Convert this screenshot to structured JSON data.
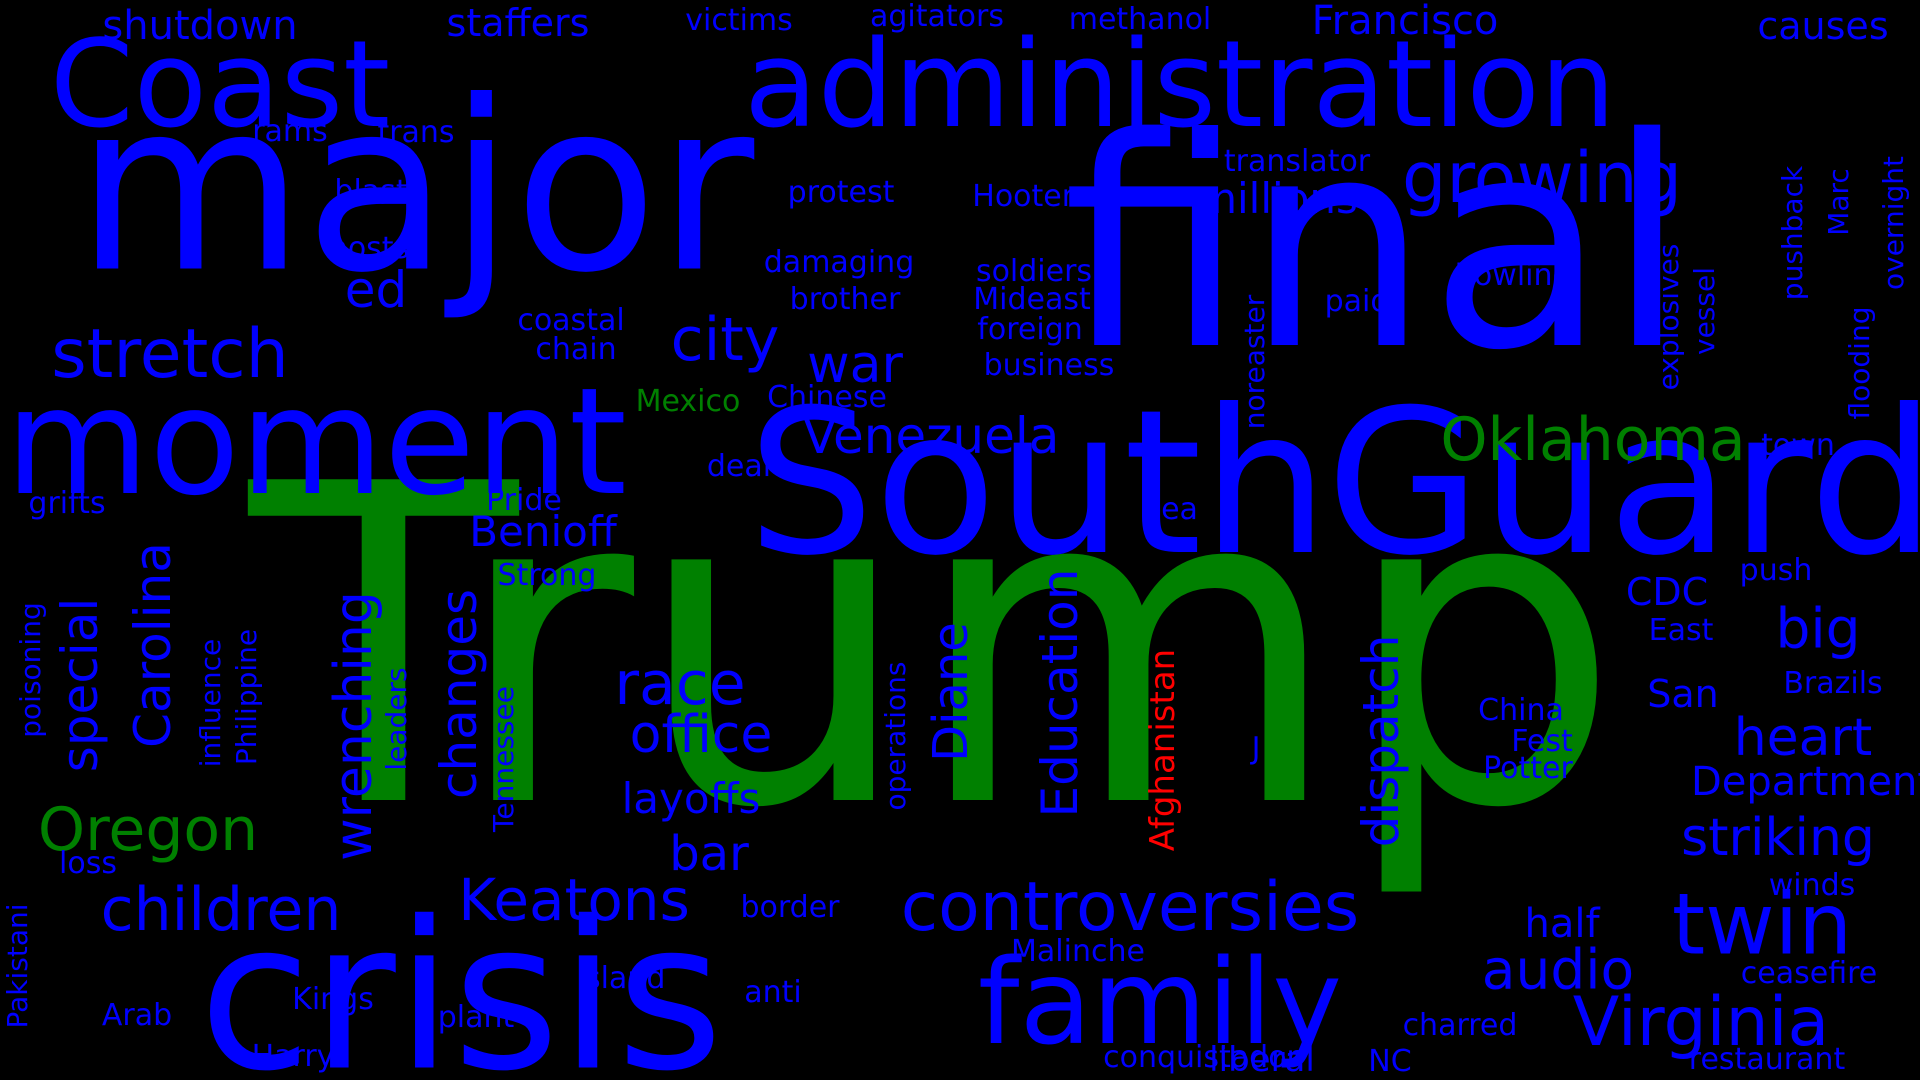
{
  "palette": {
    "background": "#000000",
    "blue": "#0000ff",
    "green": "#008000",
    "red": "#ff0000"
  },
  "words": [
    {
      "text": "Trump",
      "color": "green",
      "vertical": false
    },
    {
      "text": "final",
      "color": "blue",
      "vertical": false
    },
    {
      "text": "major",
      "color": "blue",
      "vertical": false
    },
    {
      "text": "South",
      "color": "blue",
      "vertical": false
    },
    {
      "text": "Guard",
      "color": "blue",
      "vertical": false
    },
    {
      "text": "crisis",
      "color": "blue",
      "vertical": false
    },
    {
      "text": "moment",
      "color": "blue",
      "vertical": false
    },
    {
      "text": "administration",
      "color": "blue",
      "vertical": false
    },
    {
      "text": "Coast",
      "color": "blue",
      "vertical": false
    },
    {
      "text": "family",
      "color": "blue",
      "vertical": false
    },
    {
      "text": "stretch",
      "color": "blue",
      "vertical": false
    },
    {
      "text": "city",
      "color": "blue",
      "vertical": false
    },
    {
      "text": "growing",
      "color": "blue",
      "vertical": false
    },
    {
      "text": "twin",
      "color": "blue",
      "vertical": false
    },
    {
      "text": "Virginia",
      "color": "blue",
      "vertical": false
    },
    {
      "text": "controversies",
      "color": "blue",
      "vertical": false
    },
    {
      "text": "children",
      "color": "blue",
      "vertical": false
    },
    {
      "text": "Keatons",
      "color": "blue",
      "vertical": false
    },
    {
      "text": "Oregon",
      "color": "green",
      "vertical": false
    },
    {
      "text": "Oklahoma",
      "color": "green",
      "vertical": false
    },
    {
      "text": "Venezuela",
      "color": "blue",
      "vertical": false
    },
    {
      "text": "race",
      "color": "blue",
      "vertical": false
    },
    {
      "text": "office",
      "color": "blue",
      "vertical": false
    },
    {
      "text": "war",
      "color": "blue",
      "vertical": false
    },
    {
      "text": "bar",
      "color": "blue",
      "vertical": false
    },
    {
      "text": "audio",
      "color": "blue",
      "vertical": false
    },
    {
      "text": "heart",
      "color": "blue",
      "vertical": false
    },
    {
      "text": "striking",
      "color": "blue",
      "vertical": false
    },
    {
      "text": "big",
      "color": "blue",
      "vertical": false
    },
    {
      "text": "Department",
      "color": "blue",
      "vertical": false
    },
    {
      "text": "Benioff",
      "color": "blue",
      "vertical": false
    },
    {
      "text": "layoffs",
      "color": "blue",
      "vertical": false
    },
    {
      "text": "half",
      "color": "blue",
      "vertical": false
    },
    {
      "text": "ed",
      "color": "blue",
      "vertical": false
    },
    {
      "text": "millions",
      "color": "blue",
      "vertical": false
    },
    {
      "text": "Francisco",
      "color": "blue",
      "vertical": false
    },
    {
      "text": "staffers",
      "color": "blue",
      "vertical": false
    },
    {
      "text": "shutdown",
      "color": "blue",
      "vertical": false
    },
    {
      "text": "causes",
      "color": "blue",
      "vertical": false
    },
    {
      "text": "methanol",
      "color": "blue",
      "vertical": false
    },
    {
      "text": "agitators",
      "color": "blue",
      "vertical": false
    },
    {
      "text": "victims",
      "color": "blue",
      "vertical": false
    },
    {
      "text": "translator",
      "color": "blue",
      "vertical": false
    },
    {
      "text": "protest",
      "color": "blue",
      "vertical": false
    },
    {
      "text": "Hooters",
      "color": "blue",
      "vertical": false
    },
    {
      "text": "blast",
      "color": "blue",
      "vertical": false
    },
    {
      "text": "hosts",
      "color": "blue",
      "vertical": false
    },
    {
      "text": "rams",
      "color": "blue",
      "vertical": false
    },
    {
      "text": "trans",
      "color": "blue",
      "vertical": false
    },
    {
      "text": "damaging",
      "color": "blue",
      "vertical": false
    },
    {
      "text": "soldiers",
      "color": "blue",
      "vertical": false
    },
    {
      "text": "brother",
      "color": "blue",
      "vertical": false
    },
    {
      "text": "Mideast",
      "color": "blue",
      "vertical": false
    },
    {
      "text": "foreign",
      "color": "blue",
      "vertical": false
    },
    {
      "text": "business",
      "color": "blue",
      "vertical": false
    },
    {
      "text": "Rowling",
      "color": "blue",
      "vertical": false
    },
    {
      "text": "paid",
      "color": "blue",
      "vertical": false
    },
    {
      "text": "coastal",
      "color": "blue",
      "vertical": false
    },
    {
      "text": "chain",
      "color": "blue",
      "vertical": false
    },
    {
      "text": "Mexico",
      "color": "green",
      "vertical": false
    },
    {
      "text": "Chinese",
      "color": "blue",
      "vertical": false
    },
    {
      "text": "deal",
      "color": "blue",
      "vertical": false
    },
    {
      "text": "Pride",
      "color": "blue",
      "vertical": false
    },
    {
      "text": "Sea",
      "color": "blue",
      "vertical": false
    },
    {
      "text": "town",
      "color": "blue",
      "vertical": false
    },
    {
      "text": "grifts",
      "color": "blue",
      "vertical": false
    },
    {
      "text": "Strong",
      "color": "blue",
      "vertical": false
    },
    {
      "text": "CDC",
      "color": "blue",
      "vertical": false
    },
    {
      "text": "push",
      "color": "blue",
      "vertical": false
    },
    {
      "text": "East",
      "color": "blue",
      "vertical": false
    },
    {
      "text": "San",
      "color": "blue",
      "vertical": false
    },
    {
      "text": "Brazils",
      "color": "blue",
      "vertical": false
    },
    {
      "text": "China",
      "color": "blue",
      "vertical": false
    },
    {
      "text": "Fest",
      "color": "blue",
      "vertical": false
    },
    {
      "text": "Potter",
      "color": "blue",
      "vertical": false
    },
    {
      "text": "J",
      "color": "blue",
      "vertical": false
    },
    {
      "text": "loss",
      "color": "blue",
      "vertical": false
    },
    {
      "text": "border",
      "color": "blue",
      "vertical": false
    },
    {
      "text": "winds",
      "color": "blue",
      "vertical": false
    },
    {
      "text": "Malinche",
      "color": "blue",
      "vertical": false
    },
    {
      "text": "ceasefire",
      "color": "blue",
      "vertical": false
    },
    {
      "text": "island",
      "color": "blue",
      "vertical": false
    },
    {
      "text": "anti",
      "color": "blue",
      "vertical": false
    },
    {
      "text": "Arab",
      "color": "blue",
      "vertical": false
    },
    {
      "text": "Kings",
      "color": "blue",
      "vertical": false
    },
    {
      "text": "plant",
      "color": "blue",
      "vertical": false
    },
    {
      "text": "charred",
      "color": "blue",
      "vertical": false
    },
    {
      "text": "Harry",
      "color": "blue",
      "vertical": false
    },
    {
      "text": "conquistador",
      "color": "blue",
      "vertical": false
    },
    {
      "text": "liberal",
      "color": "blue",
      "vertical": false
    },
    {
      "text": "NC",
      "color": "blue",
      "vertical": false
    },
    {
      "text": "restaurant",
      "color": "blue",
      "vertical": false
    },
    {
      "text": "Carolina",
      "color": "blue",
      "vertical": true
    },
    {
      "text": "special",
      "color": "blue",
      "vertical": true
    },
    {
      "text": "wrenching",
      "color": "blue",
      "vertical": true
    },
    {
      "text": "changes",
      "color": "blue",
      "vertical": true
    },
    {
      "text": "Diane",
      "color": "blue",
      "vertical": true
    },
    {
      "text": "Education",
      "color": "blue",
      "vertical": true
    },
    {
      "text": "dispatch",
      "color": "blue",
      "vertical": true
    },
    {
      "text": "Afghanistan",
      "color": "red",
      "vertical": true
    },
    {
      "text": "operations",
      "color": "blue",
      "vertical": true
    },
    {
      "text": "Tennessee",
      "color": "blue",
      "vertical": true
    },
    {
      "text": "leaders",
      "color": "blue",
      "vertical": true
    },
    {
      "text": "influence",
      "color": "blue",
      "vertical": true
    },
    {
      "text": "Philippine",
      "color": "blue",
      "vertical": true
    },
    {
      "text": "poisoning",
      "color": "blue",
      "vertical": true
    },
    {
      "text": "Pakistani",
      "color": "blue",
      "vertical": true
    },
    {
      "text": "noreaster",
      "color": "blue",
      "vertical": true
    },
    {
      "text": "explosives",
      "color": "blue",
      "vertical": true
    },
    {
      "text": "vessel",
      "color": "blue",
      "vertical": true
    },
    {
      "text": "pushback",
      "color": "blue",
      "vertical": true
    },
    {
      "text": "Marc",
      "color": "blue",
      "vertical": true
    },
    {
      "text": "flooding",
      "color": "blue",
      "vertical": true
    },
    {
      "text": "overnight",
      "color": "blue",
      "vertical": true
    }
  ]
}
